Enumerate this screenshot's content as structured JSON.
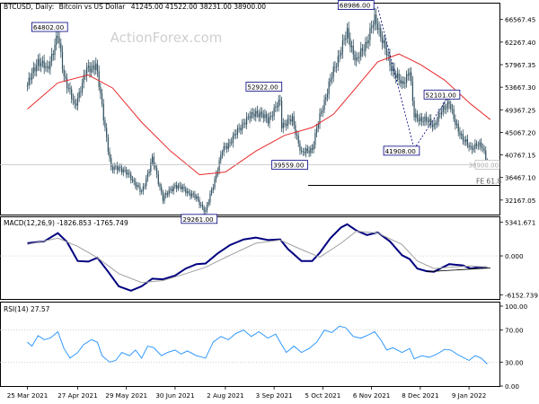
{
  "header": {
    "symbol": "BTCUSD, Daily:",
    "name": "Bitcoin vs US Dollar",
    "ohlc": "41245.00 41522.00 38231.00 38900.00"
  },
  "watermark": "ActionForex.com",
  "colors": {
    "candle": "#2f4f5f",
    "ma": "#e8292b",
    "macd": "#000080",
    "signal": "#a0a0a0",
    "rsi": "#1e90ff",
    "label_border": "#000080",
    "dashed": "#000080"
  },
  "chart_data": [
    {
      "type": "candlestick",
      "panel": "price",
      "title": "BTCUSD, Daily: Bitcoin vs US Dollar 41245.00 41522.00 38231.00 38900.00",
      "x_ticks": [
        "25 Mar 2021",
        "27 Apr 2021",
        "29 May 2021",
        "30 Jun 2021",
        "2 Aug 2021",
        "3 Sep 2021",
        "5 Oct 2021",
        "6 Nov 2021",
        "8 Dec 2021",
        "9 Jan 2022"
      ],
      "y_ticks": [
        66567.45,
        62267.4,
        57967.35,
        53667.3,
        49367.25,
        45067.2,
        40767.15,
        36467.1,
        32167.05
      ],
      "ylim": [
        29400,
        69600
      ],
      "last_price_label": "38900.00",
      "annotations": [
        {
          "label": "64802.00",
          "date": "2021-04-14",
          "value": 64802
        },
        {
          "label": "29261.00",
          "date": "2021-07-20",
          "value": 29261
        },
        {
          "label": "52922.00",
          "date": "2021-09-07",
          "value": 52922
        },
        {
          "label": "39559.00",
          "date": "2021-09-21",
          "value": 39559
        },
        {
          "label": "68986.00",
          "date": "2021-11-10",
          "value": 68986
        },
        {
          "label": "41908.00",
          "date": "2021-12-04",
          "value": 41908
        },
        {
          "label": "52101.00",
          "date": "2021-12-27",
          "value": 52101
        }
      ],
      "fe_label": "FE 61.8",
      "fe_level": 34950,
      "close_path": [
        [
          "2021-03-25",
          54000
        ],
        [
          "2021-04-01",
          58800
        ],
        [
          "2021-04-07",
          57000
        ],
        [
          "2021-04-14",
          63500
        ],
        [
          "2021-04-18",
          56000
        ],
        [
          "2021-04-25",
          50000
        ],
        [
          "2021-05-03",
          57000
        ],
        [
          "2021-05-09",
          58000
        ],
        [
          "2021-05-13",
          50000
        ],
        [
          "2021-05-19",
          38000
        ],
        [
          "2021-05-24",
          38500
        ],
        [
          "2021-06-01",
          36500
        ],
        [
          "2021-06-08",
          33500
        ],
        [
          "2021-06-15",
          40000
        ],
        [
          "2021-06-22",
          32500
        ],
        [
          "2021-06-30",
          35000
        ],
        [
          "2021-07-07",
          34000
        ],
        [
          "2021-07-14",
          32500
        ],
        [
          "2021-07-20",
          30000
        ],
        [
          "2021-07-24",
          34000
        ],
        [
          "2021-07-31",
          41500
        ],
        [
          "2021-08-07",
          44000
        ],
        [
          "2021-08-14",
          47000
        ],
        [
          "2021-08-22",
          49000
        ],
        [
          "2021-08-30",
          47500
        ],
        [
          "2021-09-07",
          51000
        ],
        [
          "2021-09-08",
          46500
        ],
        [
          "2021-09-15",
          47500
        ],
        [
          "2021-09-21",
          41000
        ],
        [
          "2021-09-28",
          42000
        ],
        [
          "2021-10-03",
          48000
        ],
        [
          "2021-10-10",
          55000
        ],
        [
          "2021-10-17",
          61000
        ],
        [
          "2021-10-21",
          64000
        ],
        [
          "2021-10-27",
          58500
        ],
        [
          "2021-11-03",
          62500
        ],
        [
          "2021-11-08",
          66500
        ],
        [
          "2021-11-10",
          65500
        ],
        [
          "2021-11-18",
          58000
        ],
        [
          "2021-11-26",
          54000
        ],
        [
          "2021-12-01",
          57000
        ],
        [
          "2021-12-04",
          48000
        ],
        [
          "2021-12-10",
          47500
        ],
        [
          "2021-12-17",
          46500
        ],
        [
          "2021-12-22",
          49000
        ],
        [
          "2021-12-27",
          51000
        ],
        [
          "2021-12-31",
          46500
        ],
        [
          "2022-01-05",
          44000
        ],
        [
          "2022-01-10",
          41800
        ],
        [
          "2022-01-14",
          43000
        ],
        [
          "2022-01-18",
          42000
        ],
        [
          "2022-01-21",
          38900
        ]
      ],
      "ma_path": [
        [
          "2021-03-25",
          49500
        ],
        [
          "2021-04-14",
          54500
        ],
        [
          "2021-05-04",
          56000
        ],
        [
          "2021-05-20",
          53500
        ],
        [
          "2021-06-08",
          47000
        ],
        [
          "2021-06-27",
          41500
        ],
        [
          "2021-07-16",
          37000
        ],
        [
          "2021-08-02",
          37500
        ],
        [
          "2021-08-22",
          41500
        ],
        [
          "2021-09-10",
          44500
        ],
        [
          "2021-09-28",
          46000
        ],
        [
          "2021-10-12",
          48500
        ],
        [
          "2021-10-28",
          54000
        ],
        [
          "2021-11-10",
          58500
        ],
        [
          "2021-11-24",
          60000
        ],
        [
          "2021-12-08",
          58000
        ],
        [
          "2021-12-24",
          55000
        ],
        [
          "2022-01-10",
          50500
        ],
        [
          "2022-01-23",
          47500
        ]
      ]
    },
    {
      "type": "line",
      "panel": "macd",
      "title": "MACD(12,26,9) -1826.853 -1765.749",
      "y_ticks": [
        5341.671,
        0.0,
        -6152.739
      ],
      "ylim": [
        -6800,
        6100
      ],
      "series": [
        {
          "name": "MACD",
          "color": "#000080",
          "points": [
            [
              "2021-03-25",
              2000
            ],
            [
              "2021-04-05",
              2300
            ],
            [
              "2021-04-14",
              3600
            ],
            [
              "2021-04-20",
              2200
            ],
            [
              "2021-04-27",
              -800
            ],
            [
              "2021-05-04",
              -900
            ],
            [
              "2021-05-10",
              -300
            ],
            [
              "2021-05-17",
              -2500
            ],
            [
              "2021-05-24",
              -4800
            ],
            [
              "2021-06-01",
              -5500
            ],
            [
              "2021-06-08",
              -4800
            ],
            [
              "2021-06-15",
              -3600
            ],
            [
              "2021-06-22",
              -3700
            ],
            [
              "2021-06-30",
              -3100
            ],
            [
              "2021-07-07",
              -2000
            ],
            [
              "2021-07-14",
              -1300
            ],
            [
              "2021-07-20",
              -1200
            ],
            [
              "2021-07-28",
              400
            ],
            [
              "2021-08-05",
              1700
            ],
            [
              "2021-08-14",
              2600
            ],
            [
              "2021-08-22",
              2900
            ],
            [
              "2021-08-30",
              2500
            ],
            [
              "2021-09-07",
              2600
            ],
            [
              "2021-09-12",
              1100
            ],
            [
              "2021-09-21",
              -800
            ],
            [
              "2021-09-28",
              -800
            ],
            [
              "2021-10-03",
              500
            ],
            [
              "2021-10-10",
              2800
            ],
            [
              "2021-10-17",
              4500
            ],
            [
              "2021-10-21",
              5000
            ],
            [
              "2021-10-27",
              4000
            ],
            [
              "2021-11-03",
              3300
            ],
            [
              "2021-11-10",
              3700
            ],
            [
              "2021-11-18",
              2300
            ],
            [
              "2021-11-26",
              100
            ],
            [
              "2021-12-01",
              -500
            ],
            [
              "2021-12-06",
              -2000
            ],
            [
              "2021-12-12",
              -2400
            ],
            [
              "2021-12-17",
              -2500
            ],
            [
              "2021-12-22",
              -1900
            ],
            [
              "2021-12-27",
              -1300
            ],
            [
              "2021-12-31",
              -1400
            ],
            [
              "2022-01-05",
              -1500
            ],
            [
              "2022-01-10",
              -2000
            ],
            [
              "2022-01-15",
              -1800
            ],
            [
              "2022-01-21",
              -1826
            ]
          ]
        },
        {
          "name": "Signal",
          "color": "#a0a0a0",
          "points": [
            [
              "2021-03-25",
              1800
            ],
            [
              "2021-04-14",
              2800
            ],
            [
              "2021-04-27",
              1500
            ],
            [
              "2021-05-10",
              -300
            ],
            [
              "2021-05-24",
              -2800
            ],
            [
              "2021-06-08",
              -4200
            ],
            [
              "2021-06-22",
              -3900
            ],
            [
              "2021-07-07",
              -2800
            ],
            [
              "2021-07-20",
              -1800
            ],
            [
              "2021-08-05",
              100
            ],
            [
              "2021-08-22",
              2000
            ],
            [
              "2021-09-07",
              2500
            ],
            [
              "2021-09-21",
              1000
            ],
            [
              "2021-10-03",
              -200
            ],
            [
              "2021-10-17",
              2000
            ],
            [
              "2021-10-27",
              3900
            ],
            [
              "2021-11-10",
              3600
            ],
            [
              "2021-11-26",
              1800
            ],
            [
              "2021-12-06",
              -800
            ],
            [
              "2021-12-17",
              -2000
            ],
            [
              "2021-12-27",
              -1800
            ],
            [
              "2022-01-10",
              -1600
            ],
            [
              "2022-01-21",
              -1766
            ]
          ]
        }
      ],
      "trendline": [
        [
          "2021-12-12",
          -2500
        ],
        [
          "2022-01-23",
          -1900
        ]
      ]
    },
    {
      "type": "line",
      "panel": "rsi",
      "title": "RSI(14) 27.57",
      "y_ticks": [
        100.0,
        70.0,
        30.0,
        0.0
      ],
      "ylim": [
        0,
        100
      ],
      "series": [
        {
          "name": "RSI",
          "color": "#1e90ff",
          "points": [
            [
              "2021-03-25",
              55
            ],
            [
              "2021-03-28",
              50
            ],
            [
              "2021-04-01",
              63
            ],
            [
              "2021-04-05",
              58
            ],
            [
              "2021-04-09",
              60
            ],
            [
              "2021-04-14",
              68
            ],
            [
              "2021-04-18",
              47
            ],
            [
              "2021-04-22",
              35
            ],
            [
              "2021-04-27",
              42
            ],
            [
              "2021-05-01",
              52
            ],
            [
              "2021-05-06",
              58
            ],
            [
              "2021-05-10",
              55
            ],
            [
              "2021-05-13",
              38
            ],
            [
              "2021-05-18",
              30
            ],
            [
              "2021-05-22",
              32
            ],
            [
              "2021-05-26",
              42
            ],
            [
              "2021-05-31",
              38
            ],
            [
              "2021-06-04",
              45
            ],
            [
              "2021-06-08",
              35
            ],
            [
              "2021-06-12",
              50
            ],
            [
              "2021-06-16",
              48
            ],
            [
              "2021-06-21",
              38
            ],
            [
              "2021-06-25",
              42
            ],
            [
              "2021-06-30",
              45
            ],
            [
              "2021-07-04",
              40
            ],
            [
              "2021-07-08",
              44
            ],
            [
              "2021-07-14",
              38
            ],
            [
              "2021-07-20",
              35
            ],
            [
              "2021-07-25",
              55
            ],
            [
              "2021-07-30",
              62
            ],
            [
              "2021-08-04",
              58
            ],
            [
              "2021-08-09",
              66
            ],
            [
              "2021-08-14",
              70
            ],
            [
              "2021-08-19",
              62
            ],
            [
              "2021-08-24",
              68
            ],
            [
              "2021-08-30",
              60
            ],
            [
              "2021-09-04",
              65
            ],
            [
              "2021-09-07",
              55
            ],
            [
              "2021-09-11",
              42
            ],
            [
              "2021-09-16",
              50
            ],
            [
              "2021-09-21",
              42
            ],
            [
              "2021-09-26",
              47
            ],
            [
              "2021-10-01",
              55
            ],
            [
              "2021-10-06",
              70
            ],
            [
              "2021-10-11",
              67
            ],
            [
              "2021-10-16",
              75
            ],
            [
              "2021-10-20",
              73
            ],
            [
              "2021-10-25",
              62
            ],
            [
              "2021-10-30",
              60
            ],
            [
              "2021-11-04",
              64
            ],
            [
              "2021-11-08",
              68
            ],
            [
              "2021-11-12",
              58
            ],
            [
              "2021-11-16",
              45
            ],
            [
              "2021-11-20",
              48
            ],
            [
              "2021-11-26",
              42
            ],
            [
              "2021-12-01",
              47
            ],
            [
              "2021-12-04",
              34
            ],
            [
              "2021-12-09",
              38
            ],
            [
              "2021-12-14",
              36
            ],
            [
              "2021-12-19",
              40
            ],
            [
              "2021-12-24",
              46
            ],
            [
              "2021-12-28",
              45
            ],
            [
              "2022-01-01",
              40
            ],
            [
              "2022-01-05",
              36
            ],
            [
              "2022-01-09",
              32
            ],
            [
              "2022-01-13",
              38
            ],
            [
              "2022-01-17",
              35
            ],
            [
              "2022-01-21",
              27.57
            ]
          ]
        }
      ]
    }
  ]
}
